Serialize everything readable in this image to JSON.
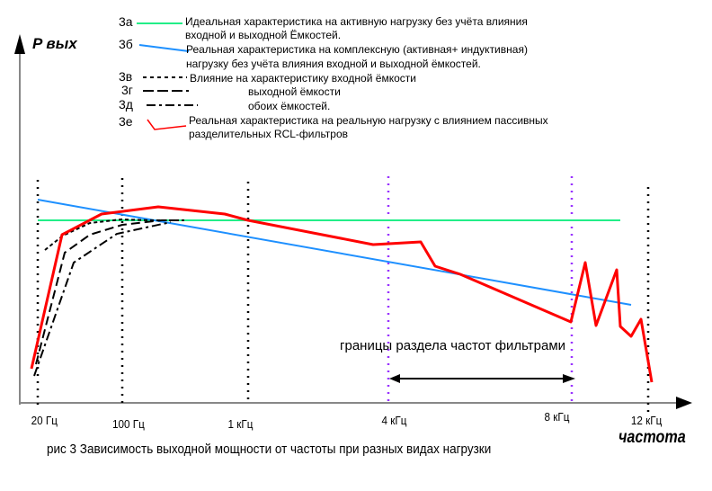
{
  "axes": {
    "y_label": "P вых",
    "x_label": "частота"
  },
  "legend": [
    {
      "code": "3а",
      "color": "#22ee88",
      "style": "solid",
      "lines": [
        "Идеальная характеристика на активную нагрузку без учёта влияния",
        "входной и выходной Ёмкостей."
      ]
    },
    {
      "code": "3б",
      "color": "#1e90ff",
      "style": "solid",
      "lines": [
        "Реальная характеристика на комплексную (активная+ индуктивная)",
        "нагрузку без учёта влияния входной и выходной ёмкостей."
      ]
    },
    {
      "code": "3в",
      "color": "#000000",
      "style": "dotted",
      "lines": [
        "Влияние на характеристику входной ёмкости"
      ]
    },
    {
      "code": "3г",
      "color": "#000000",
      "style": "dashed",
      "lines": [
        "выходной ёмкости"
      ]
    },
    {
      "code": "3д",
      "color": "#000000",
      "style": "dash-dot",
      "lines": [
        "обоих ёмкостей."
      ]
    },
    {
      "code": "3е",
      "color": "#ff0000",
      "style": "solid",
      "lines": [
        "Реальная характеристика на реальную нагрузку с влиянием  пассивных",
        "разделительных RCL-фильтров"
      ]
    }
  ],
  "x_ticks": [
    "20 Гц",
    "100 Гц",
    "1 кГц",
    "4 кГц",
    "8 кГц",
    "12 кГц"
  ],
  "boundary_label": "границы раздела частот фильтрами",
  "boundary_color": "#9933ff",
  "caption": "рис 3 Зависимость выходной мощности от частоты при разных видах нагрузки"
}
